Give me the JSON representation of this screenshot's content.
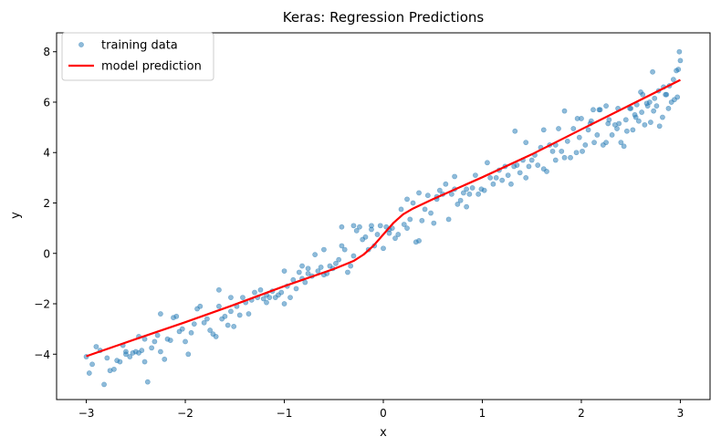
{
  "chart_data": {
    "type": "scatter",
    "title": "Keras: Regression Predictions",
    "xlabel": "x",
    "ylabel": "y",
    "xlim": [
      -3.3,
      3.3
    ],
    "ylim": [
      -5.8,
      8.75
    ],
    "xticks": [
      -3,
      -2,
      -1,
      0,
      1,
      2,
      3
    ],
    "yticks": [
      -4,
      -2,
      0,
      2,
      4,
      6,
      8
    ],
    "xtick_labels": [
      "−3",
      "−2",
      "−1",
      "0",
      "1",
      "2",
      "3"
    ],
    "ytick_labels": [
      "−4",
      "−2",
      "0",
      "2",
      "4",
      "6",
      "8"
    ],
    "grid": false,
    "legend_position": "top-left",
    "colors": {
      "scatter": "#1f77b4",
      "line": "#ff0000"
    },
    "series": [
      {
        "name": "training data",
        "kind": "scatter",
        "points": [
          [
            -3.0,
            -4.1
          ],
          [
            -2.97,
            -4.75
          ],
          [
            -2.94,
            -4.4
          ],
          [
            -2.9,
            -3.7
          ],
          [
            -2.86,
            -3.85
          ],
          [
            -2.82,
            -5.2
          ],
          [
            -2.79,
            -4.15
          ],
          [
            -2.76,
            -4.65
          ],
          [
            -2.72,
            -4.6
          ],
          [
            -2.69,
            -4.25
          ],
          [
            -2.66,
            -4.3
          ],
          [
            -2.63,
            -3.65
          ],
          [
            -2.6,
            -3.9
          ],
          [
            -2.56,
            -4.1
          ],
          [
            -2.53,
            -3.95
          ],
          [
            -2.5,
            -3.9
          ],
          [
            -2.47,
            -3.3
          ],
          [
            -2.44,
            -3.85
          ],
          [
            -2.41,
            -4.3
          ],
          [
            -2.38,
            -5.1
          ],
          [
            -2.34,
            -3.75
          ],
          [
            -2.31,
            -3.5
          ],
          [
            -2.28,
            -3.25
          ],
          [
            -2.25,
            -2.4
          ],
          [
            -2.21,
            -4.2
          ],
          [
            -2.18,
            -3.4
          ],
          [
            -2.15,
            -3.45
          ],
          [
            -2.12,
            -2.55
          ],
          [
            -2.09,
            -2.5
          ],
          [
            -2.06,
            -3.1
          ],
          [
            -2.03,
            -3.0
          ],
          [
            -2.0,
            -3.5
          ],
          [
            -1.97,
            -4.0
          ],
          [
            -1.94,
            -3.15
          ],
          [
            -1.91,
            -2.8
          ],
          [
            -1.88,
            -2.2
          ],
          [
            -1.85,
            -2.1
          ],
          [
            -1.81,
            -2.75
          ],
          [
            -1.78,
            -2.6
          ],
          [
            -1.75,
            -3.05
          ],
          [
            -1.72,
            -3.2
          ],
          [
            -1.69,
            -3.3
          ],
          [
            -1.66,
            -1.45
          ],
          [
            -1.63,
            -2.6
          ],
          [
            -1.6,
            -2.5
          ],
          [
            -1.57,
            -2.85
          ],
          [
            -1.54,
            -1.75
          ],
          [
            -1.51,
            -2.9
          ],
          [
            -1.48,
            -2.1
          ],
          [
            -1.45,
            -2.45
          ],
          [
            -1.42,
            -1.75
          ],
          [
            -1.39,
            -1.95
          ],
          [
            -1.36,
            -2.4
          ],
          [
            -1.33,
            -1.85
          ],
          [
            -1.3,
            -1.55
          ],
          [
            -1.27,
            -1.75
          ],
          [
            -1.24,
            -1.45
          ],
          [
            -1.21,
            -1.8
          ],
          [
            -1.18,
            -1.65
          ],
          [
            -1.15,
            -1.75
          ],
          [
            -1.12,
            -1.5
          ],
          [
            -1.09,
            -1.75
          ],
          [
            -1.06,
            -1.65
          ],
          [
            -1.03,
            -1.55
          ],
          [
            -1.0,
            -2.0
          ],
          [
            -0.97,
            -1.3
          ],
          [
            -0.94,
            -1.75
          ],
          [
            -0.91,
            -1.05
          ],
          [
            -0.88,
            -1.4
          ],
          [
            -0.85,
            -0.75
          ],
          [
            -0.82,
            -1.0
          ],
          [
            -0.79,
            -1.15
          ],
          [
            -0.76,
            -0.6
          ],
          [
            -0.72,
            -0.9
          ],
          [
            -0.69,
            -0.05
          ],
          [
            -0.66,
            -0.7
          ],
          [
            -0.63,
            -0.55
          ],
          [
            -0.6,
            -0.85
          ],
          [
            -0.57,
            -0.8
          ],
          [
            -0.54,
            -0.5
          ],
          [
            -0.51,
            -0.6
          ],
          [
            -0.48,
            -0.4
          ],
          [
            -0.45,
            -0.25
          ],
          [
            -0.42,
            0.3
          ],
          [
            -0.39,
            0.15
          ],
          [
            -0.36,
            -0.75
          ],
          [
            -0.33,
            -0.5
          ],
          [
            -0.3,
            -0.1
          ],
          [
            -0.27,
            0.9
          ],
          [
            -0.24,
            1.05
          ],
          [
            -0.21,
            0.55
          ],
          [
            -0.18,
            0.65
          ],
          [
            -0.15,
            0.15
          ],
          [
            -0.12,
            0.95
          ],
          [
            -0.09,
            0.3
          ],
          [
            -0.06,
            0.75
          ],
          [
            -0.03,
            1.1
          ],
          [
            0.0,
            0.2
          ],
          [
            0.03,
            1.05
          ],
          [
            0.06,
            0.8
          ],
          [
            0.09,
            1.0
          ],
          [
            0.12,
            0.6
          ],
          [
            0.15,
            0.75
          ],
          [
            0.18,
            1.75
          ],
          [
            0.21,
            1.15
          ],
          [
            0.24,
            1.0
          ],
          [
            0.27,
            1.35
          ],
          [
            0.3,
            2.0
          ],
          [
            0.33,
            0.45
          ],
          [
            0.36,
            0.5
          ],
          [
            0.39,
            1.3
          ],
          [
            0.42,
            1.75
          ],
          [
            0.45,
            2.3
          ],
          [
            0.48,
            1.6
          ],
          [
            0.51,
            1.2
          ],
          [
            0.54,
            2.25
          ],
          [
            0.57,
            2.5
          ],
          [
            0.6,
            2.35
          ],
          [
            0.63,
            2.75
          ],
          [
            0.66,
            1.35
          ],
          [
            0.69,
            2.35
          ],
          [
            0.72,
            2.55
          ],
          [
            0.75,
            1.95
          ],
          [
            0.78,
            2.1
          ],
          [
            0.81,
            2.4
          ],
          [
            0.84,
            2.55
          ],
          [
            0.87,
            2.35
          ],
          [
            0.9,
            2.6
          ],
          [
            0.93,
            3.1
          ],
          [
            0.96,
            2.35
          ],
          [
            0.99,
            2.55
          ],
          [
            1.02,
            2.5
          ],
          [
            1.05,
            3.6
          ],
          [
            1.08,
            3.0
          ],
          [
            1.11,
            2.75
          ],
          [
            1.14,
            3.0
          ],
          [
            1.17,
            3.3
          ],
          [
            1.2,
            2.9
          ],
          [
            1.23,
            3.45
          ],
          [
            1.26,
            3.1
          ],
          [
            1.29,
            2.75
          ],
          [
            1.32,
            3.45
          ],
          [
            1.35,
            3.5
          ],
          [
            1.38,
            3.2
          ],
          [
            1.41,
            3.7
          ],
          [
            1.44,
            3.0
          ],
          [
            1.47,
            3.45
          ],
          [
            1.5,
            3.7
          ],
          [
            1.53,
            3.9
          ],
          [
            1.56,
            3.5
          ],
          [
            1.59,
            4.2
          ],
          [
            1.62,
            3.35
          ],
          [
            1.65,
            3.25
          ],
          [
            1.68,
            4.3
          ],
          [
            1.71,
            4.05
          ],
          [
            1.74,
            3.7
          ],
          [
            1.77,
            4.95
          ],
          [
            1.8,
            4.05
          ],
          [
            1.83,
            3.8
          ],
          [
            1.86,
            4.45
          ],
          [
            1.89,
            3.8
          ],
          [
            1.92,
            4.95
          ],
          [
            1.95,
            4.0
          ],
          [
            1.98,
            4.6
          ],
          [
            2.01,
            4.05
          ],
          [
            2.04,
            4.3
          ],
          [
            2.07,
            4.9
          ],
          [
            2.1,
            5.25
          ],
          [
            2.13,
            4.4
          ],
          [
            2.16,
            4.7
          ],
          [
            2.19,
            5.7
          ],
          [
            2.22,
            4.3
          ],
          [
            2.25,
            4.4
          ],
          [
            2.28,
            5.3
          ],
          [
            2.31,
            4.7
          ],
          [
            2.34,
            5.1
          ],
          [
            2.37,
            5.75
          ],
          [
            2.4,
            4.4
          ],
          [
            2.43,
            4.25
          ],
          [
            2.46,
            4.85
          ],
          [
            2.49,
            5.75
          ],
          [
            2.52,
            4.9
          ],
          [
            2.55,
            5.4
          ],
          [
            2.58,
            5.25
          ],
          [
            2.61,
            5.6
          ],
          [
            2.64,
            5.1
          ],
          [
            2.67,
            5.85
          ],
          [
            2.7,
            5.2
          ],
          [
            2.73,
            5.65
          ],
          [
            2.76,
            5.85
          ],
          [
            2.79,
            5.05
          ],
          [
            2.82,
            5.4
          ],
          [
            2.85,
            6.3
          ],
          [
            2.88,
            5.75
          ],
          [
            2.91,
            6.0
          ],
          [
            2.94,
            6.1
          ],
          [
            2.97,
            6.2
          ],
          [
            2.0,
            5.35
          ],
          [
            2.09,
            5.15
          ],
          [
            2.18,
            5.7
          ],
          [
            2.27,
            5.15
          ],
          [
            2.36,
            4.95
          ],
          [
            2.45,
            5.3
          ],
          [
            2.54,
            5.5
          ],
          [
            2.6,
            6.4
          ],
          [
            2.69,
            6.0
          ],
          [
            2.78,
            6.45
          ],
          [
            2.86,
            6.3
          ],
          [
            2.89,
            6.65
          ],
          [
            2.93,
            6.9
          ],
          [
            2.96,
            7.25
          ],
          [
            2.98,
            7.3
          ],
          [
            2.99,
            8.0
          ],
          [
            3.0,
            7.65
          ],
          [
            2.72,
            7.2
          ],
          [
            2.66,
            5.95
          ],
          [
            2.56,
            5.9
          ],
          [
            1.33,
            4.85
          ],
          [
            1.44,
            4.4
          ],
          [
            1.74,
            4.3
          ],
          [
            1.83,
            5.65
          ],
          [
            1.96,
            5.35
          ],
          [
            2.12,
            5.7
          ],
          [
            2.25,
            5.85
          ],
          [
            2.38,
            5.15
          ],
          [
            2.5,
            5.75
          ],
          [
            2.62,
            6.3
          ],
          [
            2.74,
            6.15
          ],
          [
            2.83,
            6.6
          ],
          [
            1.62,
            4.9
          ],
          [
            0.36,
            2.4
          ],
          [
            0.54,
            2.15
          ],
          [
            0.72,
            3.05
          ],
          [
            0.84,
            1.85
          ],
          [
            -0.6,
            0.15
          ],
          [
            -0.42,
            1.05
          ],
          [
            -0.3,
            1.1
          ],
          [
            -0.12,
            1.1
          ],
          [
            0.06,
            0.95
          ],
          [
            0.24,
            2.15
          ],
          [
            -1.18,
            -1.95
          ],
          [
            -1.0,
            -0.7
          ],
          [
            -0.82,
            -0.5
          ],
          [
            -0.76,
            -0.8
          ],
          [
            -1.66,
            -2.1
          ],
          [
            -1.54,
            -2.3
          ],
          [
            -2.25,
            -3.9
          ],
          [
            -2.41,
            -3.4
          ],
          [
            -2.6,
            -4.0
          ],
          [
            -2.47,
            -3.95
          ]
        ]
      },
      {
        "name": "model prediction",
        "kind": "line",
        "points": [
          [
            -3.0,
            -4.08
          ],
          [
            -2.5,
            -3.4
          ],
          [
            -2.0,
            -2.73
          ],
          [
            -1.5,
            -2.03
          ],
          [
            -1.0,
            -1.3
          ],
          [
            -0.5,
            -0.62
          ],
          [
            -0.3,
            -0.3
          ],
          [
            -0.2,
            -0.05
          ],
          [
            -0.1,
            0.3
          ],
          [
            0.0,
            0.75
          ],
          [
            0.1,
            1.2
          ],
          [
            0.2,
            1.55
          ],
          [
            0.3,
            1.78
          ],
          [
            0.5,
            2.15
          ],
          [
            1.0,
            3.02
          ],
          [
            1.5,
            3.93
          ],
          [
            2.0,
            4.92
          ],
          [
            2.5,
            5.9
          ],
          [
            3.0,
            6.88
          ]
        ]
      }
    ]
  }
}
